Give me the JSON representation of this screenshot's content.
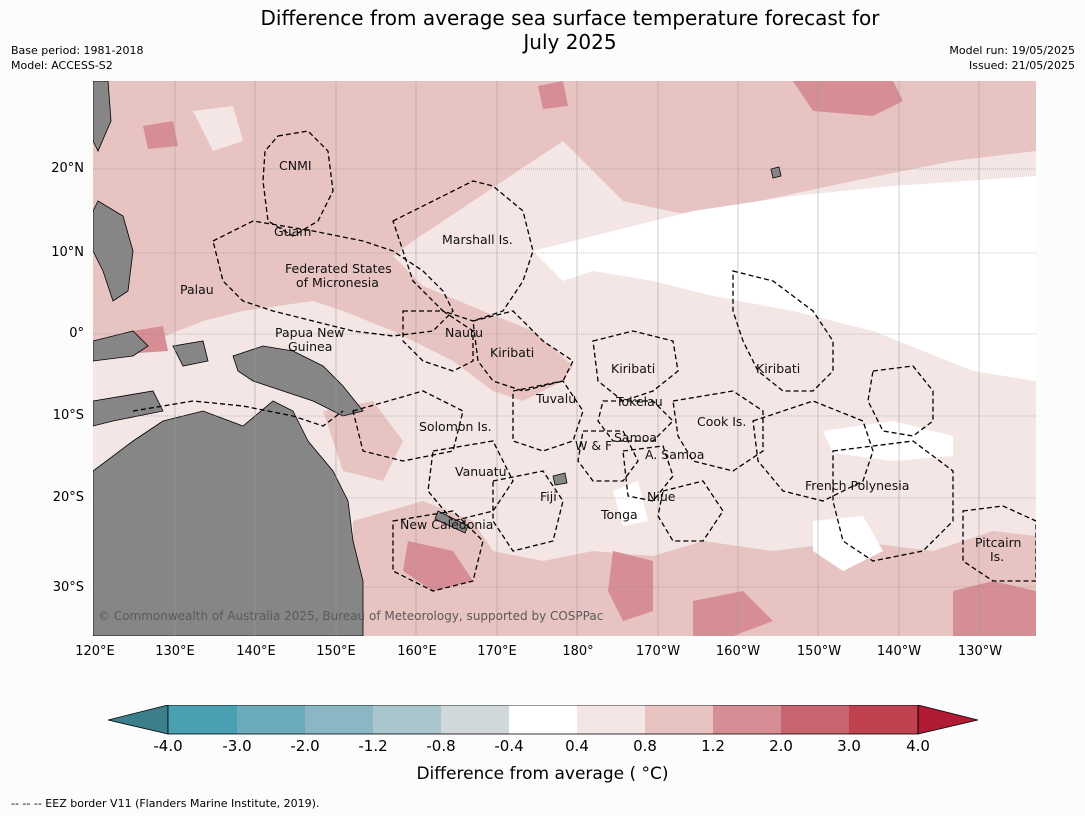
{
  "title": "Difference from average sea surface temperature forecast for July 2025",
  "title_line1": "Difference from average sea surface temperature forecast for",
  "title_line2": "July 2025",
  "meta_left": {
    "base_period": "Base period: 1981-2018",
    "model": "Model: ACCESS-S2"
  },
  "meta_right": {
    "model_run": "Model run: 19/05/2025",
    "issued": "Issued: 21/05/2025"
  },
  "copyright": "© Commonwealth of Australia 2025, Bureau of Meteorology, supported by COSPPac",
  "footnote": "--  --  -- EEZ border V11 (Flanders Marine Institute, 2019).",
  "y_axis_labels": [
    "20°N",
    "10°N",
    "0°",
    "10°S",
    "20°S",
    "30°S"
  ],
  "x_axis_labels": [
    "120°E",
    "130°E",
    "140°E",
    "150°E",
    "160°E",
    "170°E",
    "180°",
    "170°W",
    "160°W",
    "150°W",
    "140°W",
    "130°W"
  ],
  "places": [
    "CNMI",
    "Guam",
    "Marshall Is.",
    "Federated States",
    "of Micronesia",
    "Palau",
    "Papua New",
    "Guinea",
    "Nauru",
    "Kiribati",
    "Kiribati",
    "Kiribati",
    "Tuvalu",
    "Tokelau",
    "Solomon Is.",
    "Cook Is.",
    "W & F",
    "Samoa",
    "A. Samoa",
    "Vanuatu",
    "Fiji",
    "Niue",
    "French Polynesia",
    "Tonga",
    "New Caledonia",
    "Pitcairn",
    "Is."
  ],
  "colorbar": {
    "label": "Difference from average ( °C)",
    "ticks": [
      "-4.0",
      "-3.0",
      "-2.0",
      "-1.2",
      "-0.8",
      "-0.4",
      "0.4",
      "0.8",
      "1.2",
      "2.0",
      "3.0",
      "4.0"
    ],
    "colors": [
      "#3b7f8b",
      "#48a0b2",
      "#6aacbb",
      "#8ab7c3",
      "#a8c6cc",
      "#d1d8da",
      "#ffffff",
      "#f4e6e5",
      "#e7c4c1",
      "#d68d94",
      "#c86370",
      "#c0414f",
      "#b01a34"
    ]
  },
  "colors": {
    "land": "#868686",
    "background": "#fcfcfc"
  }
}
